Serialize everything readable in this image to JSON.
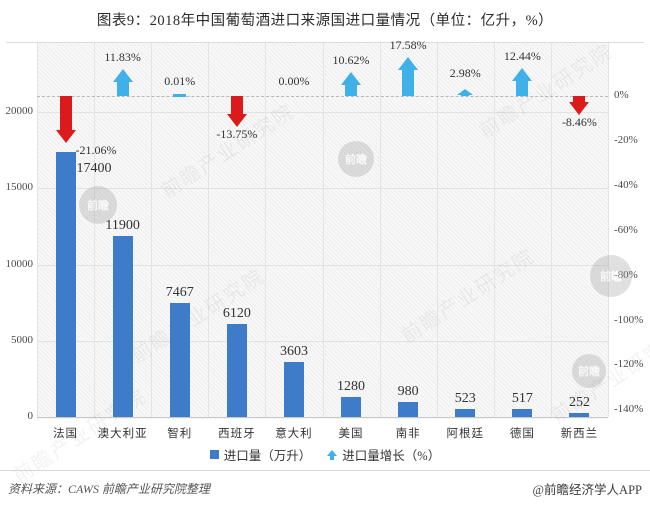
{
  "title": "图表9：2018年中国葡萄酒进口来源国进口量情况（单位：亿升，%）",
  "chart_data": {
    "type": "bar",
    "title": "图表9：2018年中国葡萄酒进口来源国进口量情况（单位：亿升，%）",
    "unit_note": "单位：亿升，%",
    "categories": [
      "法国",
      "澳大利亚",
      "智利",
      "西班牙",
      "意大利",
      "美国",
      "南非",
      "阿根廷",
      "德国",
      "新西兰"
    ],
    "series": [
      {
        "name": "进口量（万升）",
        "type": "bar",
        "axis": "left",
        "values": [
          17400,
          11900,
          7467,
          6120,
          3603,
          1280,
          980,
          523,
          517,
          252
        ]
      },
      {
        "name": "进口量增长（%）",
        "type": "arrow",
        "axis": "right",
        "values": [
          -21.06,
          11.83,
          0.01,
          -13.75,
          0.0,
          10.62,
          17.58,
          2.98,
          12.44,
          -8.46
        ]
      }
    ],
    "value_labels": [
      "17400",
      "11900",
      "7467",
      "6120",
      "3603",
      "1280",
      "980",
      "523",
      "517",
      "252"
    ],
    "growth_labels": [
      "-21.06%",
      "11.83%",
      "0.01%",
      "-13.75%",
      "0.00%",
      "10.62%",
      "17.58%",
      "2.98%",
      "12.44%",
      "-8.46%"
    ],
    "left_axis": {
      "tick_labels": [
        "20000",
        "15000",
        "10000",
        "5000",
        "0"
      ],
      "tick_values": [
        20000,
        15000,
        10000,
        5000,
        0
      ],
      "min": 0,
      "max": 24500
    },
    "right_axis": {
      "tick_labels": [
        "0%",
        "-20%",
        "-40%",
        "-60%",
        "-80%",
        "-100%",
        "-120%",
        "-140%"
      ],
      "tick_values": [
        0,
        -20,
        -40,
        -60,
        -80,
        -100,
        -120,
        -140
      ],
      "min": -145,
      "max": 24
    },
    "grid": true,
    "legend_position": "bottom"
  },
  "legend": {
    "items": [
      {
        "label": "进口量（万升）",
        "marker": "square",
        "color": "#3E7CCA"
      },
      {
        "label": "进口量增长（%）",
        "marker": "up-arrow",
        "color": "#3FB1E8"
      }
    ]
  },
  "footer": {
    "source": "资料来源：CAWS  前瞻产业研究院整理",
    "credit": "@前瞻经济学人APP"
  },
  "watermark": {
    "diagonal_text": "前瞻产业研究院",
    "logo_text": "前瞻"
  },
  "colors": {
    "bar": "#3E7CCA",
    "arrow_up": "#3FB1E8",
    "arrow_down": "#DB1B1B",
    "grid_line": "#E2E2E2",
    "zero_line": "#B9B9B9",
    "axis_text": "#4A4A4A",
    "label_text": "#333333"
  }
}
